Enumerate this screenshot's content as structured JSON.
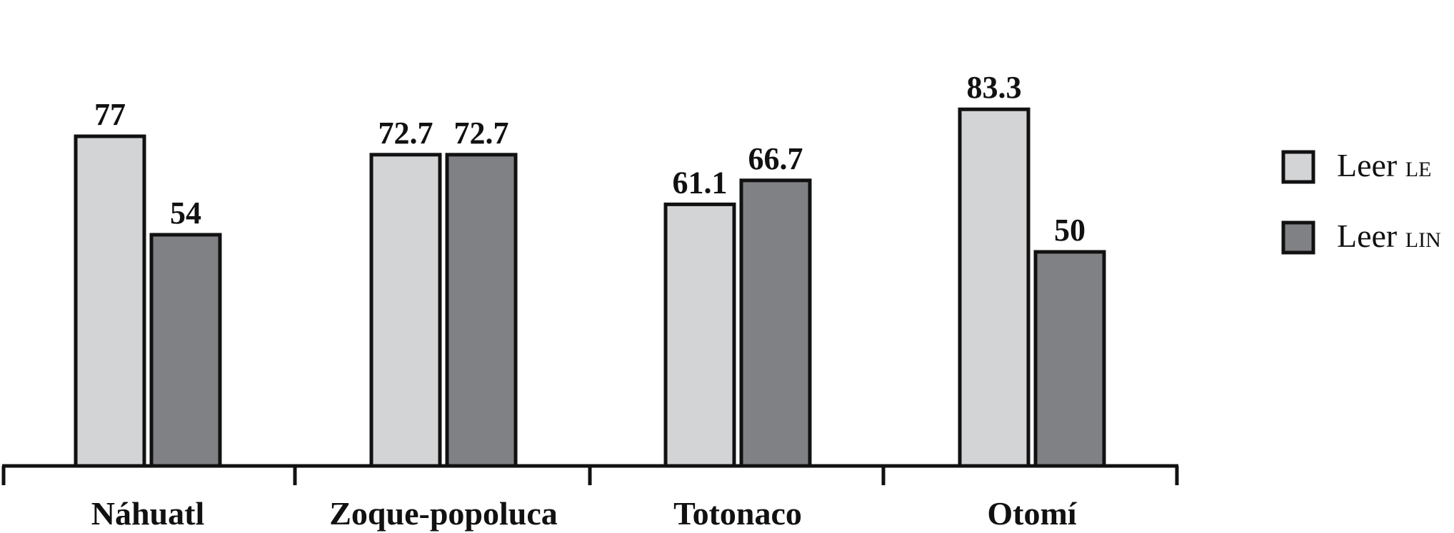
{
  "chart_data": {
    "type": "bar",
    "categories": [
      "Náhuatl",
      "Zoque-popoluca",
      "Totonaco",
      "Otomí"
    ],
    "series": [
      {
        "name_main": "Leer",
        "name_suffix": "LE",
        "values": [
          77,
          72.7,
          61.1,
          83.3
        ],
        "value_labels": [
          "77",
          "72.7",
          "61.1",
          "83.3"
        ],
        "color": "#d3d4d6"
      },
      {
        "name_main": "Leer",
        "name_suffix": "LIN",
        "values": [
          54,
          72.7,
          66.7,
          50
        ],
        "value_labels": [
          "54",
          "72.7",
          "66.7",
          "50"
        ],
        "color": "#808184"
      }
    ],
    "ylim": [
      0,
      100
    ],
    "legend_position": "right",
    "grid": false
  }
}
